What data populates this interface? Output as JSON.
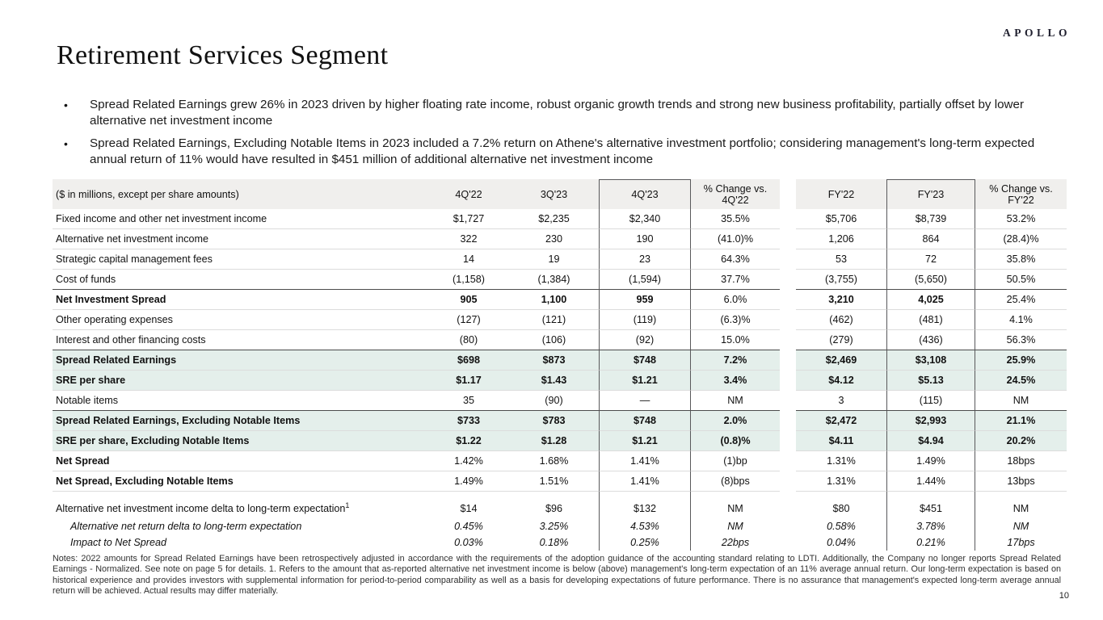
{
  "logo": "APOLLO",
  "title": "Retirement Services Segment",
  "bullets": [
    "Spread Related Earnings grew 26% in 2023 driven by higher floating rate income, robust organic growth trends and strong new business profitability, partially offset by lower alternative net investment income",
    "Spread Related Earnings, Excluding Notable Items in 2023 included a 7.2% return on Athene's alternative investment portfolio; considering management's long-term expected annual return of 11% would have resulted in $451 million of additional alternative net investment income"
  ],
  "table": {
    "unit_label": "($ in millions, except per share amounts)",
    "columns": [
      "4Q'22",
      "3Q'23",
      "4Q'23",
      "% Change vs. 4Q'22",
      "FY'22",
      "FY'23",
      "% Change vs. FY'22"
    ],
    "rows": [
      {
        "label": "Fixed income and other net investment income",
        "values": [
          "$1,727",
          "$2,235",
          "$2,340",
          "35.5%",
          "$5,706",
          "$8,739",
          "53.2%"
        ],
        "flags": []
      },
      {
        "label": "Alternative net investment income",
        "values": [
          "322",
          "230",
          "190",
          "(41.0)%",
          "1,206",
          "864",
          "(28.4)%"
        ],
        "flags": []
      },
      {
        "label": "Strategic capital management fees",
        "values": [
          "14",
          "19",
          "23",
          "64.3%",
          "53",
          "72",
          "35.8%"
        ],
        "flags": []
      },
      {
        "label": "Cost of funds",
        "values": [
          "(1,158)",
          "(1,384)",
          "(1,594)",
          "37.7%",
          "(3,755)",
          "(5,650)",
          "50.5%"
        ],
        "flags": [
          "nobottom"
        ]
      },
      {
        "label": "Net Investment Spread",
        "values": [
          "905",
          "1,100",
          "959",
          "6.0%",
          "3,210",
          "4,025",
          "25.4%"
        ],
        "flags": [
          "boldvals",
          "topline"
        ]
      },
      {
        "label": "Other operating expenses",
        "values": [
          "(127)",
          "(121)",
          "(119)",
          "(6.3)%",
          "(462)",
          "(481)",
          "4.1%"
        ],
        "flags": []
      },
      {
        "label": "Interest and other financing costs",
        "values": [
          "(80)",
          "(106)",
          "(92)",
          "15.0%",
          "(279)",
          "(436)",
          "56.3%"
        ],
        "flags": [
          "nobottom"
        ]
      },
      {
        "label": "Spread Related Earnings",
        "values": [
          "$698",
          "$873",
          "$748",
          "7.2%",
          "$2,469",
          "$3,108",
          "25.9%"
        ],
        "flags": [
          "bold",
          "green",
          "topline"
        ]
      },
      {
        "label": "SRE per share",
        "values": [
          "$1.17",
          "$1.43",
          "$1.21",
          "3.4%",
          "$4.12",
          "$5.13",
          "24.5%"
        ],
        "flags": [
          "bold",
          "green"
        ]
      },
      {
        "label": "Notable items",
        "values": [
          "35",
          "(90)",
          "—",
          "NM",
          "3",
          "(115)",
          "NM"
        ],
        "flags": [
          "nobottom"
        ]
      },
      {
        "label": "Spread Related Earnings, Excluding Notable Items",
        "values": [
          "$733",
          "$783",
          "$748",
          "2.0%",
          "$2,472",
          "$2,993",
          "21.1%"
        ],
        "flags": [
          "bold",
          "green",
          "topline"
        ]
      },
      {
        "label": "SRE per share, Excluding Notable Items",
        "values": [
          "$1.22",
          "$1.28",
          "$1.21",
          "(0.8)%",
          "$4.11",
          "$4.94",
          "20.2%"
        ],
        "flags": [
          "bold",
          "green"
        ]
      },
      {
        "label": "Net Spread",
        "values": [
          "1.42%",
          "1.68%",
          "1.41%",
          "(1)bp",
          "1.31%",
          "1.49%",
          "18bps"
        ],
        "flags": [
          "labelbold"
        ]
      },
      {
        "label": "Net Spread, Excluding Notable Items",
        "values": [
          "1.49%",
          "1.51%",
          "1.41%",
          "(8)bps",
          "1.31%",
          "1.44%",
          "13bps"
        ],
        "flags": [
          "labelbold"
        ]
      },
      {
        "label": "Alternative net investment income delta to long-term expectation",
        "sup": "1",
        "values": [
          "$14",
          "$96",
          "$132",
          "NM",
          "$80",
          "$451",
          "NM"
        ],
        "flags": [
          "gapabove",
          "noline"
        ]
      },
      {
        "label": "Alternative net return delta to long-term expectation",
        "values": [
          "0.45%",
          "3.25%",
          "4.53%",
          "NM",
          "0.58%",
          "3.78%",
          "NM"
        ],
        "flags": [
          "italic",
          "noline"
        ]
      },
      {
        "label": "Impact to Net Spread",
        "values": [
          "0.03%",
          "0.18%",
          "0.25%",
          "22bps",
          "0.04%",
          "0.21%",
          "17bps"
        ],
        "flags": [
          "italic",
          "noline",
          "last"
        ]
      }
    ]
  },
  "notes": "Notes: 2022 amounts for Spread Related Earnings have been retrospectively adjusted in accordance with the requirements of the adoption guidance of the accounting standard relating to LDTI. Additionally, the Company no longer reports Spread Related Earnings - Normalized. See note on page 5 for details. 1. Refers to the amount that as-reported alternative net investment income is below (above) management's long-term expectation of an 11% average annual return. Our long-term expectation is based on historical experience and provides investors with supplemental information for period-to-period comparability as well as a basis for developing expectations of future performance. There is no assurance that management's expected long-term average annual return will be achieved. Actual results may differ materially.",
  "page_number": "10",
  "colors": {
    "highlight_green": "#e4efeb",
    "header_bg": "#f0efed",
    "box_border": "#59595b",
    "row_line": "#dcdcdc",
    "section_line": "#4c4c4c"
  }
}
